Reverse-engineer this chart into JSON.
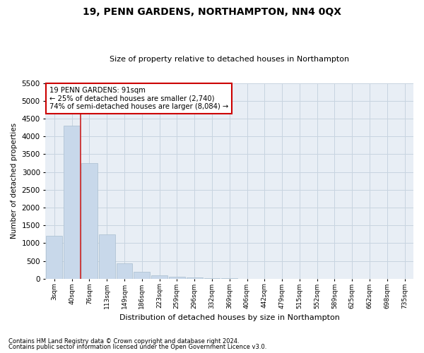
{
  "title": "19, PENN GARDENS, NORTHAMPTON, NN4 0QX",
  "subtitle": "Size of property relative to detached houses in Northampton",
  "xlabel": "Distribution of detached houses by size in Northampton",
  "ylabel": "Number of detached properties",
  "footnote1": "Contains HM Land Registry data © Crown copyright and database right 2024.",
  "footnote2": "Contains public sector information licensed under the Open Government Licence v3.0.",
  "annotation_title": "19 PENN GARDENS: 91sqm",
  "annotation_line1": "← 25% of detached houses are smaller (2,740)",
  "annotation_line2": "74% of semi-detached houses are larger (8,084) →",
  "bar_color": "#c8d8ea",
  "bar_edge_color": "#a8bece",
  "vline_color": "#cc2222",
  "annotation_box_facecolor": "#ffffff",
  "annotation_box_edgecolor": "#cc0000",
  "background_color": "#ffffff",
  "plot_bg_color": "#e8eef5",
  "grid_color": "#c8d4e0",
  "categories": [
    "3sqm",
    "40sqm",
    "76sqm",
    "113sqm",
    "149sqm",
    "186sqm",
    "223sqm",
    "259sqm",
    "296sqm",
    "332sqm",
    "369sqm",
    "406sqm",
    "442sqm",
    "479sqm",
    "515sqm",
    "552sqm",
    "589sqm",
    "625sqm",
    "662sqm",
    "698sqm",
    "735sqm"
  ],
  "values": [
    1200,
    4300,
    3250,
    1250,
    430,
    190,
    90,
    55,
    35,
    15,
    5,
    0,
    0,
    0,
    0,
    0,
    0,
    0,
    0,
    0,
    0
  ],
  "vline_bar_index": 1,
  "ylim": [
    0,
    5500
  ],
  "yticks": [
    0,
    500,
    1000,
    1500,
    2000,
    2500,
    3000,
    3500,
    4000,
    4500,
    5000,
    5500
  ]
}
